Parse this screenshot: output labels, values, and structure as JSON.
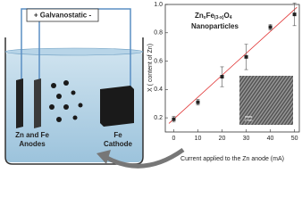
{
  "diagram": {
    "power_label": "+ Galvanostatic -",
    "anode_label": [
      "Zn and Fe",
      "Anodes"
    ],
    "cathode_label": [
      "Fe",
      "Cathode"
    ]
  },
  "chart_data": {
    "type": "scatter",
    "annotation": [
      "Zn",
      "x",
      "Fe",
      "(3-x)",
      "O",
      "4"
    ],
    "annotation_line2": "Nanoparticles",
    "x_label": "Current applied to the Zn anode (mA)",
    "y_label": "X ( content of Zn)",
    "inset_scale_label": "2 nm",
    "x": [
      0,
      10,
      20,
      30,
      40,
      50
    ],
    "series": [
      {
        "color": "#222222",
        "values": [
          0.19,
          0.31,
          0.49,
          0.63,
          0.84,
          0.93
        ],
        "errors": [
          0.02,
          0.02,
          0.07,
          0.09,
          0.02,
          0.08
        ]
      }
    ],
    "fit": {
      "color": "#e03030",
      "x": [
        -2,
        51
      ],
      "values": [
        0.16,
        0.98
      ]
    },
    "xlim": [
      -3.5,
      52
    ],
    "ylim": [
      0.1,
      1.0
    ],
    "xticks": [
      0,
      10,
      20,
      30,
      40,
      50
    ],
    "yticks": [
      0.2,
      0.4,
      0.6,
      0.8,
      {
        "value": 1,
        "label": "1.0"
      }
    ]
  }
}
